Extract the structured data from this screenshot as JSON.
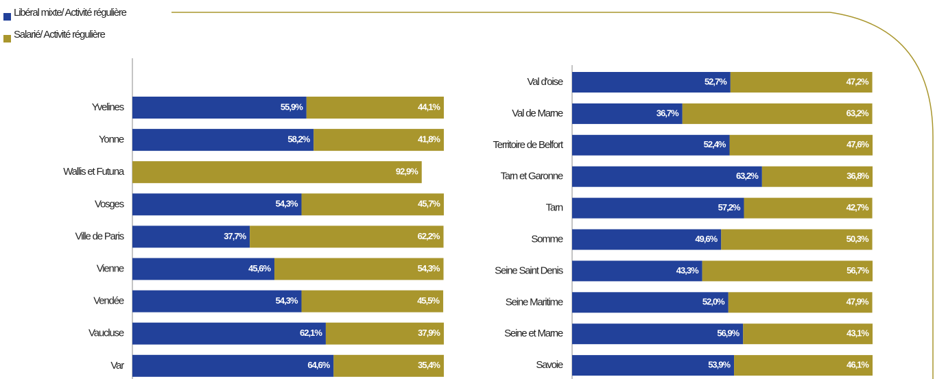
{
  "chart_data": [
    {
      "type": "bar",
      "orientation": "horizontal",
      "stacked": true,
      "categories": [
        "Yvelines",
        "Yonne",
        "Wallis et Futuna",
        "Vosges",
        "Ville de Paris",
        "Vienne",
        "Vendée",
        "Vaucluse",
        "Var"
      ],
      "xlim": [
        0,
        100
      ],
      "series": [
        {
          "name": "Libéral mixte/ Activité régulière",
          "color": "#22419a",
          "values": [
            55.9,
            58.2,
            null,
            54.3,
            37.7,
            45.6,
            54.3,
            62.1,
            64.6
          ],
          "value_labels": [
            "55,9%",
            "58,2%",
            null,
            "54,3%",
            "37,7%",
            "45,6%",
            "54,3%",
            "62,1%",
            "64,6%"
          ]
        },
        {
          "name": "Salarié/ Activité régulière",
          "color": "#a9962d",
          "values": [
            44.1,
            41.8,
            92.9,
            45.7,
            62.2,
            54.3,
            45.5,
            37.9,
            35.4
          ],
          "value_labels": [
            "44,1%",
            "41,8%",
            "92,9%",
            "45,7%",
            "62,2%",
            "54,3%",
            "45,5%",
            "37,9%",
            "35,4%"
          ]
        }
      ]
    },
    {
      "type": "bar",
      "orientation": "horizontal",
      "stacked": true,
      "categories": [
        "Val d'oise",
        "Val de Marne",
        "Territoire de Belfort",
        "Tarn et Garonne",
        "Tarn",
        "Somme",
        "Seine Saint Denis",
        "Seine Maritime",
        "Seine et Marne",
        "Savoie"
      ],
      "xlim": [
        0,
        100
      ],
      "series": [
        {
          "color": "#22419a",
          "values": [
            52.7,
            36.7,
            52.4,
            63.2,
            57.2,
            49.6,
            43.3,
            52.0,
            56.9,
            53.9
          ],
          "value_labels": [
            "52,7%",
            "36,7%",
            "52,4%",
            "63,2%",
            "57,2%",
            "49,6%",
            "43,3%",
            "52,0%",
            "56,9%",
            "53,9%"
          ]
        },
        {
          "color": "#a9962d",
          "values": [
            47.2,
            63.2,
            47.6,
            36.8,
            42.7,
            50.3,
            56.7,
            47.9,
            43.1,
            46.1
          ],
          "value_labels": [
            "47,2%",
            "63,2%",
            "47,6%",
            "36,8%",
            "42,7%",
            "50,3%",
            "56,7%",
            "47,9%",
            "43,1%",
            "46,1%"
          ]
        }
      ]
    }
  ]
}
